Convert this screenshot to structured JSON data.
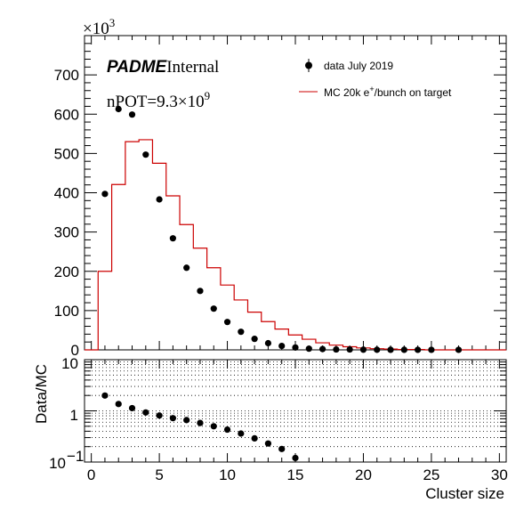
{
  "chart_data": [
    {
      "type": "scatter",
      "panel": "main",
      "title": "",
      "xlabel": "",
      "ylabel": "",
      "multiplier_label": "×10",
      "multiplier_exp": "3",
      "xlim": [
        -0.5,
        30.5
      ],
      "ylim": [
        0,
        800
      ],
      "yticks": [
        0,
        100,
        200,
        300,
        400,
        500,
        600,
        700
      ],
      "ytick_labels": [
        "0",
        "100",
        "200",
        "300",
        "400",
        "500",
        "600",
        "700"
      ],
      "annotations": {
        "experiment": "PADME",
        "status": "Internal",
        "npot_prefix": "nPOT=9.3×10",
        "npot_exp": "9"
      },
      "series": [
        {
          "name": "data July 2019",
          "kind": "points",
          "color": "#000000",
          "x": [
            1,
            2,
            3,
            4,
            5,
            6,
            7,
            8,
            9,
            10,
            11,
            12,
            13,
            14,
            15,
            16,
            17,
            18,
            19,
            20,
            21,
            22,
            23,
            24,
            25,
            27
          ],
          "y": [
            397,
            613,
            599,
            497,
            383,
            284,
            209,
            150,
            105,
            71,
            46,
            28,
            17,
            10,
            6,
            3,
            2,
            1,
            1,
            0.5,
            0.3,
            0.2,
            0.2,
            0.1,
            0.1,
            0.1
          ]
        },
        {
          "name": "MC 20k e",
          "name_sup": "+",
          "name_suffix": "/bunch on target",
          "kind": "step",
          "color": "#cc0000",
          "bin_edges": [
            -0.5,
            0.5,
            1.5,
            2.5,
            3.5,
            4.5,
            5.5,
            6.5,
            7.5,
            8.5,
            9.5,
            10.5,
            11.5,
            12.5,
            13.5,
            14.5,
            15.5,
            16.5,
            17.5,
            18.5,
            19.5,
            20.5,
            21.5,
            22.5,
            23.5,
            24.5,
            25.5,
            26.5,
            27.5,
            28.5,
            29.5,
            30.5
          ],
          "y": [
            0,
            200,
            421,
            530,
            535,
            475,
            392,
            319,
            259,
            209,
            165,
            127,
            96,
            72,
            53,
            38,
            27,
            18,
            12,
            8,
            5,
            3,
            2,
            1,
            1,
            0,
            0,
            0,
            0,
            0,
            0
          ]
        }
      ]
    },
    {
      "type": "scatter",
      "panel": "ratio",
      "title": "",
      "xlabel": "Cluster size",
      "ylabel": "Data/MC",
      "scale_y": "log",
      "xlim": [
        -0.5,
        30.5
      ],
      "ylim": [
        0.1,
        10
      ],
      "xticks": [
        0,
        5,
        10,
        15,
        20,
        25,
        30
      ],
      "xtick_labels": [
        "0",
        "5",
        "10",
        "15",
        "20",
        "25",
        "30"
      ],
      "ytick_labels": [
        "10",
        "1",
        "10"
      ],
      "ytick_low_exp": "−1",
      "grid_dotted": true,
      "series": [
        {
          "name": "",
          "kind": "points",
          "color": "#000000",
          "x": [
            1,
            2,
            3,
            4,
            5,
            6,
            7,
            8,
            9,
            10,
            11,
            12,
            13,
            14,
            15
          ],
          "y": [
            1.99,
            1.36,
            1.13,
            0.93,
            0.81,
            0.72,
            0.66,
            0.58,
            0.5,
            0.43,
            0.36,
            0.29,
            0.23,
            0.18,
            0.12
          ]
        }
      ]
    }
  ]
}
